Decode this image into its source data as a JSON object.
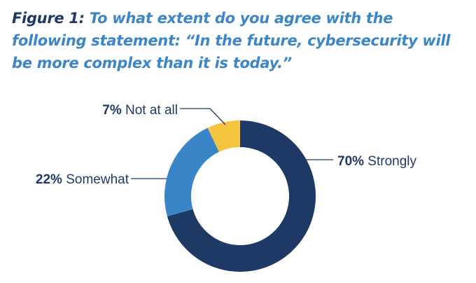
{
  "figure": {
    "label": "Figure 1:",
    "question": "To what extent do you agree with the following statement: “In the future, cybersecurity will be more complex than it is today.”"
  },
  "chart_data": {
    "type": "pie",
    "donut": true,
    "slices": [
      {
        "label": "Strongly",
        "value": 70,
        "value_label": "70%",
        "color": "#1e3a64"
      },
      {
        "label": "Somewhat",
        "value": 22,
        "value_label": "22%",
        "color": "#3a85c7"
      },
      {
        "label": "Not at all",
        "value": 7,
        "value_label": "7%",
        "color": "#f5c53f"
      }
    ],
    "legend": "none"
  }
}
